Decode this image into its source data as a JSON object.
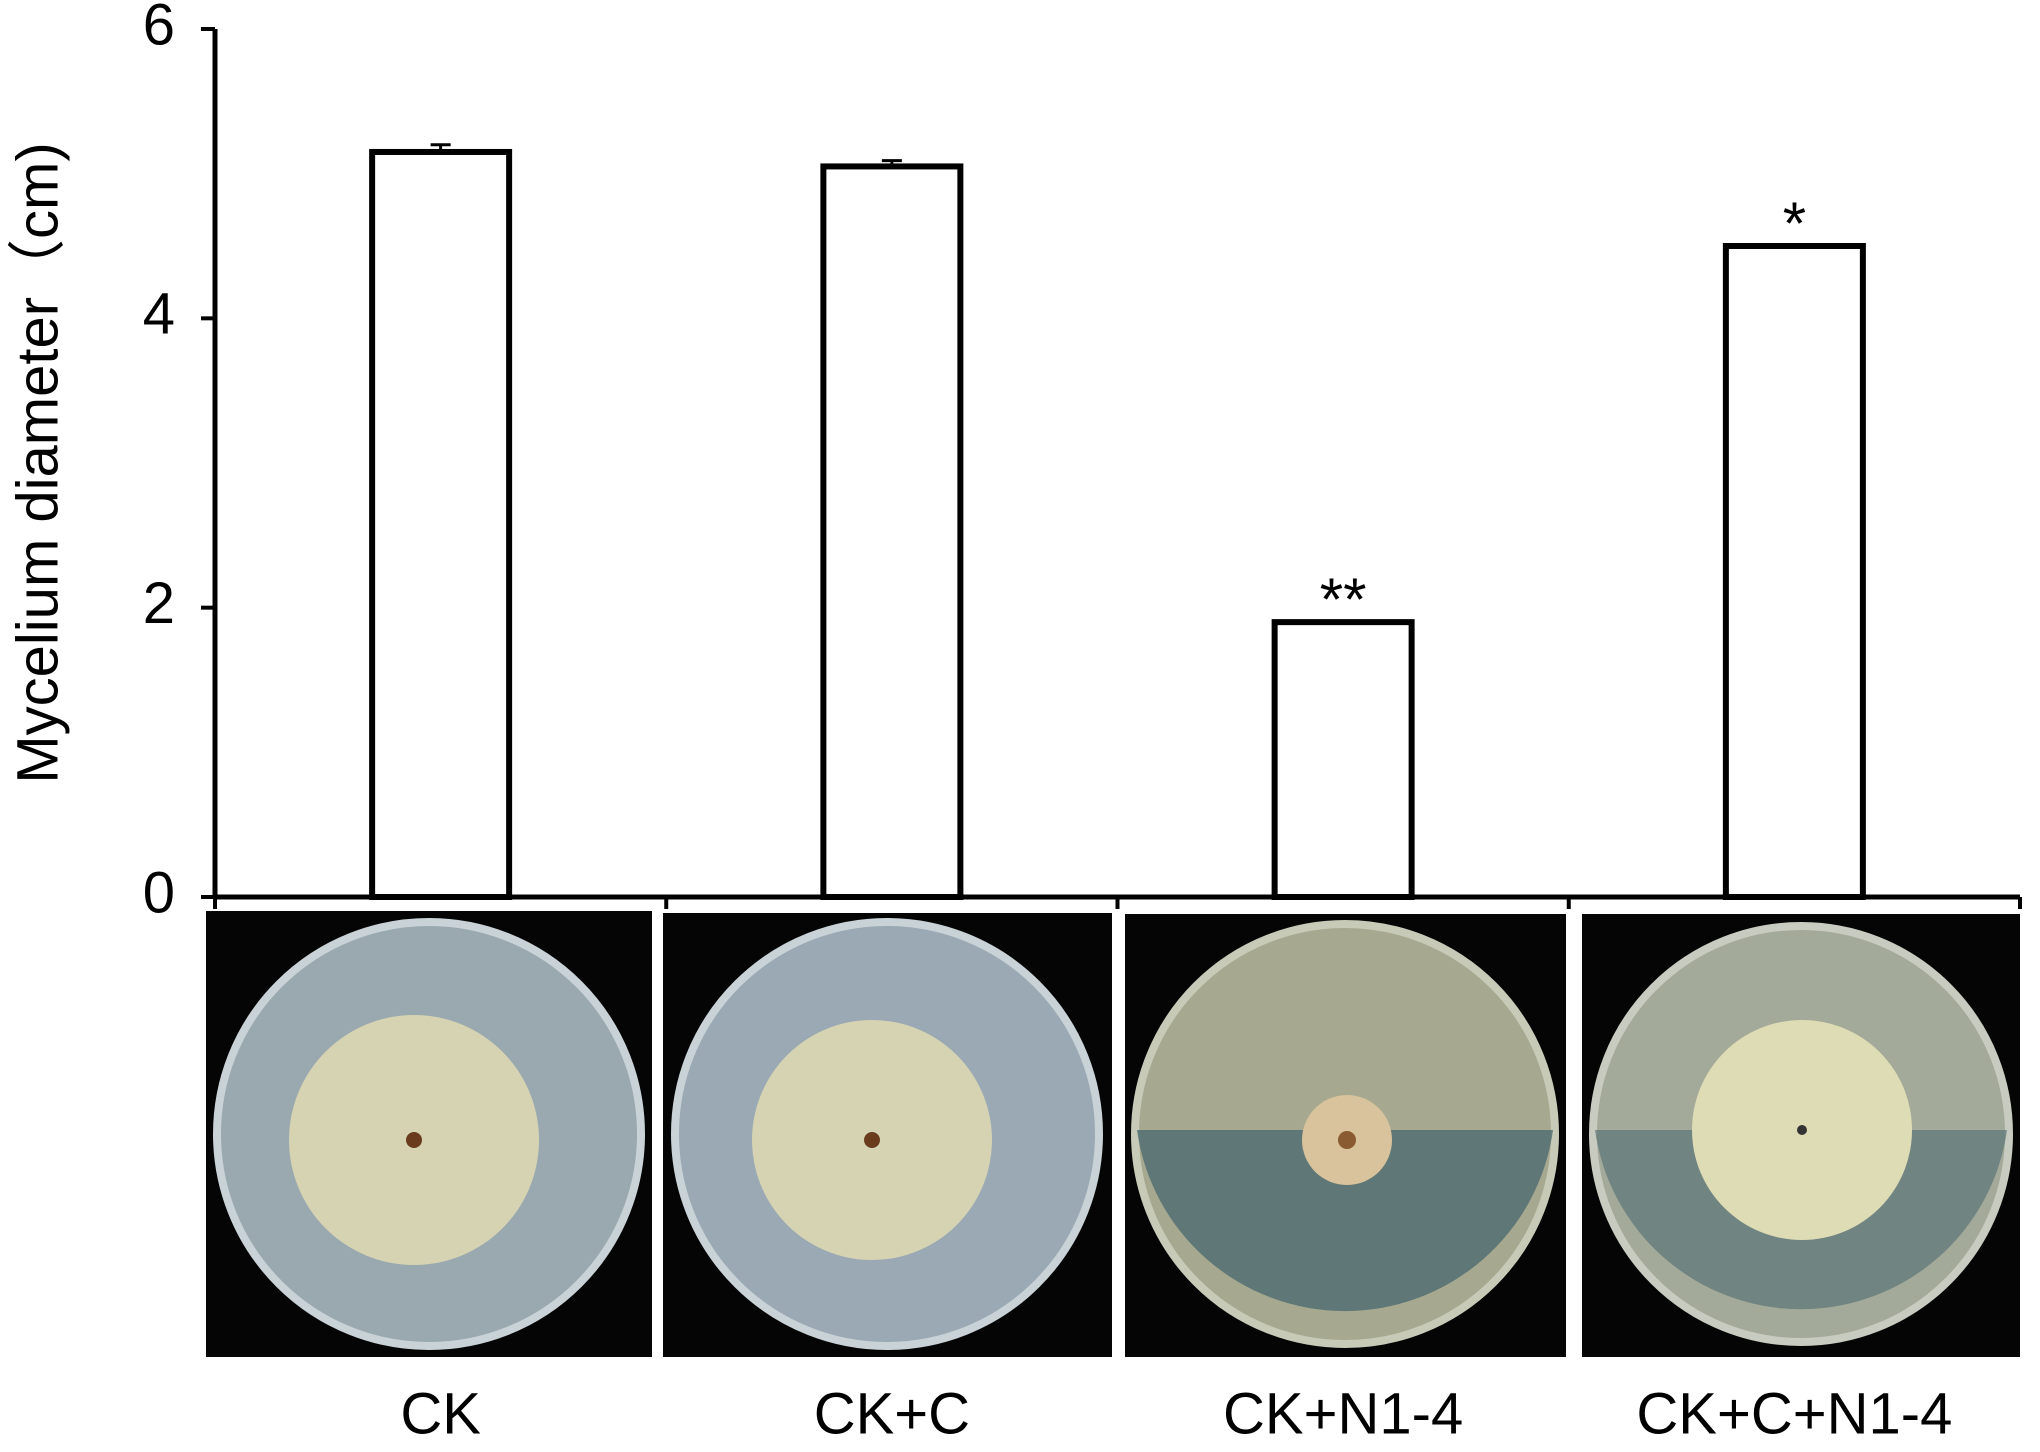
{
  "chart_data": {
    "type": "bar",
    "y_label": "Mycelium diameter（cm)",
    "categories": [
      "CK",
      "CK+C",
      "CK+N1-4",
      "CK+C+N1-4"
    ],
    "values": [
      5.15,
      5.05,
      1.9,
      4.5
    ],
    "errors": [
      0.05,
      0.04,
      null,
      null
    ],
    "significance": [
      null,
      null,
      "**",
      "*"
    ],
    "color": "#ffffff",
    "ylim": [
      0,
      6
    ],
    "yticks": [
      0,
      2,
      4,
      6
    ],
    "grid": false
  }
}
